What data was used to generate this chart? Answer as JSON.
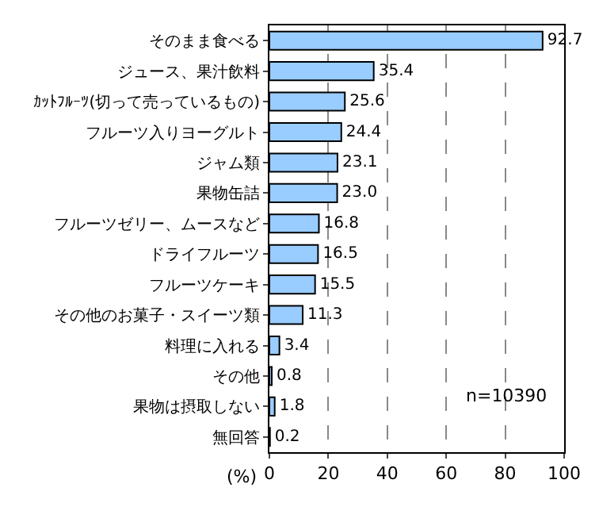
{
  "chart_data": {
    "type": "bar",
    "orientation": "horizontal",
    "categories": [
      "そのまま食べる",
      "ジュース、果汁飲料",
      "ｶｯﾄﾌﾙｰﾂ(切って売っているもの)",
      "フルーツ入りヨーグルト",
      "ジャム類",
      "果物缶詰",
      "フルーツゼリー、ムースなど",
      "ドライフルーツ",
      "フルーツケーキ",
      "その他のお菓子・スイーツ類",
      "料理に入れる",
      "その他",
      "果物は摂取しない",
      "無回答"
    ],
    "values": [
      92.7,
      35.4,
      25.6,
      24.4,
      23.1,
      23.0,
      16.8,
      16.5,
      15.5,
      11.3,
      3.4,
      0.8,
      1.8,
      0.2
    ],
    "value_labels": [
      "92.7",
      "35.4",
      "25.6",
      "24.4",
      "23.1",
      "23.0",
      "16.8",
      "16.5",
      "15.5",
      "11.3",
      "3.4",
      "0.8",
      "1.8",
      "0.2"
    ],
    "color": "#99ccff",
    "xlabel": "(%)",
    "xlim": [
      0,
      100
    ],
    "xticks": [
      0,
      20,
      40,
      60,
      80,
      100
    ],
    "grid": "x",
    "line_style": "dashed",
    "annotations": [
      "n=10390"
    ]
  }
}
